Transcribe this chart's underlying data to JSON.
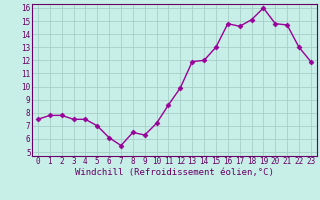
{
  "x": [
    0,
    1,
    2,
    3,
    4,
    5,
    6,
    7,
    8,
    9,
    10,
    11,
    12,
    13,
    14,
    15,
    16,
    17,
    18,
    19,
    20,
    21,
    22,
    23
  ],
  "y": [
    7.5,
    7.8,
    7.8,
    7.5,
    7.5,
    7.0,
    6.1,
    5.5,
    6.5,
    6.3,
    7.2,
    8.6,
    9.9,
    11.9,
    12.0,
    13.0,
    14.8,
    14.6,
    15.1,
    16.0,
    14.8,
    14.7,
    13.0,
    11.9
  ],
  "line_color": "#990099",
  "marker": "D",
  "marker_size": 2.5,
  "bg_color": "#c8eee8",
  "grid_color": "#a8cec8",
  "xlabel": "Windchill (Refroidissement éolien,°C)",
  "ylim": [
    5,
    16
  ],
  "xlim": [
    -0.5,
    23.5
  ],
  "yticks": [
    5,
    6,
    7,
    8,
    9,
    10,
    11,
    12,
    13,
    14,
    15,
    16
  ],
  "xticks": [
    0,
    1,
    2,
    3,
    4,
    5,
    6,
    7,
    8,
    9,
    10,
    11,
    12,
    13,
    14,
    15,
    16,
    17,
    18,
    19,
    20,
    21,
    22,
    23
  ],
  "tick_fontsize": 5.5,
  "xlabel_fontsize": 6.5,
  "linewidth": 1.0
}
